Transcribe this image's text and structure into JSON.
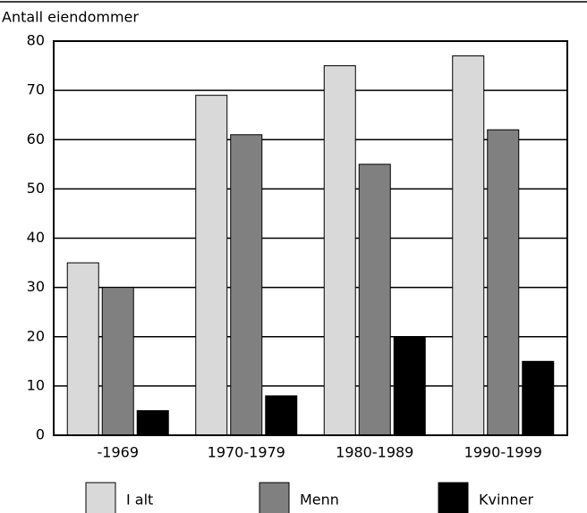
{
  "chart_data": {
    "type": "bar",
    "ylabel": "Antall eiendommer",
    "categories": [
      "-1969",
      "1970-1979",
      "1980-1989",
      "1990-1999"
    ],
    "series": [
      {
        "name": "I alt",
        "color": "#d9d9d9",
        "values": [
          35,
          69,
          75,
          77
        ]
      },
      {
        "name": "Menn",
        "color": "#808080",
        "values": [
          30,
          61,
          55,
          62
        ]
      },
      {
        "name": "Kvinner",
        "color": "#000000",
        "values": [
          5,
          8,
          20,
          15
        ]
      }
    ],
    "ylim": [
      0,
      80
    ],
    "yticks": [
      0,
      10,
      20,
      30,
      40,
      50,
      60,
      70,
      80
    ],
    "grid": true,
    "legend": "bottom"
  }
}
